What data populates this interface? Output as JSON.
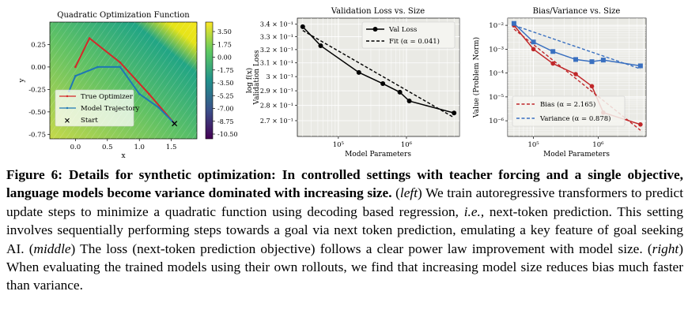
{
  "chart_data": [
    {
      "type": "contour",
      "title": "Quadratic Optimization Function",
      "xlabel": "x",
      "ylabel": "y",
      "xlim": [
        -0.4,
        1.9
      ],
      "ylim": [
        -0.8,
        0.5
      ],
      "x_ticks": [
        "0.0",
        "0.5",
        "1.0",
        "1.5"
      ],
      "y_ticks": [
        "0.25",
        "0.00",
        "-0.25",
        "-0.50",
        "-0.75"
      ],
      "colorbar": {
        "label": "log f(x)",
        "ticks": [
          "3.50",
          "1.75",
          "0.00",
          "-1.75",
          "-3.50",
          "-5.25",
          "-7.00",
          "-8.75",
          "-10.50"
        ]
      },
      "colors": {
        "optimizer": "#d62728",
        "trajectory": "#1f77b4"
      },
      "series": [
        {
          "name": "True Optimizer",
          "points": [
            [
              0.0,
              0.0
            ],
            [
              0.22,
              0.32
            ],
            [
              0.7,
              0.05
            ],
            [
              1.15,
              -0.3
            ],
            [
              1.55,
              -0.63
            ]
          ]
        },
        {
          "name": "Model Trajectory",
          "points": [
            [
              -0.1,
              -0.27
            ],
            [
              0.0,
              -0.1
            ],
            [
              0.35,
              0.0
            ],
            [
              0.7,
              0.0
            ],
            [
              1.0,
              -0.3
            ],
            [
              1.3,
              -0.45
            ],
            [
              1.55,
              -0.63
            ]
          ]
        },
        {
          "name": "Start",
          "points": [
            [
              1.55,
              -0.63
            ]
          ]
        }
      ],
      "legend": "lower-left"
    },
    {
      "type": "line",
      "scale": "log-log",
      "title": "Validation Loss vs. Size",
      "xlabel": "Model Parameters",
      "ylabel": "Validation Loss",
      "xlim": [
        25000,
        6000000
      ],
      "ylim": [
        0.26,
        0.345
      ],
      "x_ticks": [
        "10⁵",
        "10⁶"
      ],
      "y_ticks": [
        "3.4 × 10⁻¹",
        "3.3 × 10⁻¹",
        "3.2 × 10⁻¹",
        "3.1 × 10⁻¹",
        "3 × 10⁻¹",
        "2.9 × 10⁻¹",
        "2.8 × 10⁻¹",
        "2.7 × 10⁻¹"
      ],
      "series": [
        {
          "name": "Val Loss",
          "x": [
            30000,
            55000,
            200000,
            450000,
            800000,
            1100000,
            5000000
          ],
          "y": [
            0.338,
            0.323,
            0.303,
            0.295,
            0.289,
            0.283,
            0.275
          ]
        },
        {
          "name": "Fit (α = 0.041)",
          "x": [
            30000,
            5000000
          ],
          "y": [
            0.335,
            0.272
          ]
        }
      ],
      "legend": "top-right"
    },
    {
      "type": "line",
      "scale": "log-log",
      "title": "Bias/Variance vs. Size",
      "xlabel": "Model Parameters",
      "ylabel": "Value (Problem Norm)",
      "xlim": [
        40000,
        5500000
      ],
      "ylim": [
        2.2e-07,
        0.02
      ],
      "x_ticks": [
        "10⁵",
        "10⁶"
      ],
      "y_ticks": [
        "10⁻²",
        "10⁻³",
        "10⁻⁴",
        "10⁻⁵",
        "10⁻⁶"
      ],
      "series": [
        {
          "name": "Bias (α = 2.165)",
          "x": [
            50000,
            100000,
            200000,
            450000,
            800000,
            1200000,
            4500000
          ],
          "y": [
            0.01,
            0.001,
            0.00025,
            9e-05,
            2.8e-05,
            2.2e-06,
            7e-07
          ]
        },
        {
          "name": "Variance (α = 0.878)",
          "x": [
            50000,
            100000,
            200000,
            450000,
            800000,
            1200000,
            4500000
          ],
          "y": [
            0.012,
            0.002,
            0.0008,
            0.00037,
            0.0003,
            0.00035,
            0.0002
          ]
        }
      ],
      "fits": [
        {
          "x": [
            50000,
            4500000
          ],
          "y": [
            0.007,
            4e-07
          ]
        },
        {
          "x": [
            50000,
            4500000
          ],
          "y": [
            0.01,
            0.00015
          ]
        }
      ],
      "colors": {
        "bias": "#c0282a",
        "variance": "#3a70c0"
      },
      "legend": "lower-left"
    }
  ],
  "caption": {
    "fig_label": "Figure 6:",
    "bold": "Details for synthetic optimization: In controlled settings with teacher forcing and a single objective, language models become variance dominated with increasing size.",
    "left_tag": "left",
    "t1": " We train autoregressive transformers to predict update steps to minimize a quadratic function using decoding based regression, ",
    "ie": "i.e.,",
    "t2": " next-token prediction. This setting involves sequentially performing steps towards a goal via next token prediction, emulating a key feature of goal seeking AI. (",
    "middle_tag": "middle",
    "t3": ") The loss (next-token prediction objective) follows a clear power law improvement with model size. (",
    "right_tag": "right",
    "t4": ") When evaluating the trained models using their own rollouts, we find that increasing model size reduces bias much faster than variance."
  }
}
